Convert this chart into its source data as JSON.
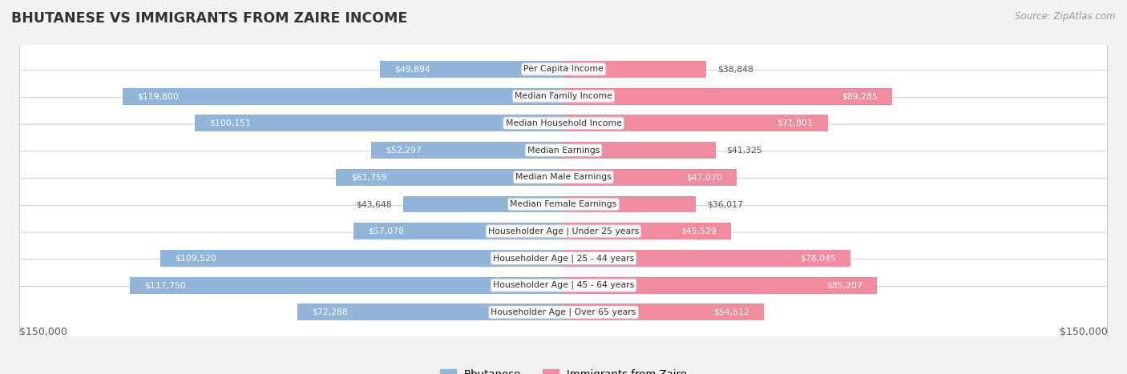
{
  "title": "BHUTANESE VS IMMIGRANTS FROM ZAIRE INCOME",
  "source": "Source: ZipAtlas.com",
  "categories": [
    "Per Capita Income",
    "Median Family Income",
    "Median Household Income",
    "Median Earnings",
    "Median Male Earnings",
    "Median Female Earnings",
    "Householder Age | Under 25 years",
    "Householder Age | 25 - 44 years",
    "Householder Age | 45 - 64 years",
    "Householder Age | Over 65 years"
  ],
  "bhutanese_values": [
    49894,
    119800,
    100151,
    52297,
    61759,
    43648,
    57078,
    109520,
    117750,
    72288
  ],
  "zaire_values": [
    38848,
    89285,
    71801,
    41325,
    47070,
    36017,
    45529,
    78045,
    85207,
    54512
  ],
  "bhutanese_labels": [
    "$49,894",
    "$119,800",
    "$100,151",
    "$52,297",
    "$61,759",
    "$43,648",
    "$57,078",
    "$109,520",
    "$117,750",
    "$72,288"
  ],
  "zaire_labels": [
    "$38,848",
    "$89,285",
    "$71,801",
    "$41,325",
    "$47,070",
    "$36,017",
    "$45,529",
    "$78,045",
    "$85,207",
    "$54,512"
  ],
  "max_value": 150000,
  "bhutanese_color": "#92b4d8",
  "zaire_color": "#f08ba0",
  "bg_color": "#f2f2f2",
  "title_color": "#333333",
  "legend_bhutanese": "Bhutanese",
  "legend_zaire": "Immigrants from Zaire",
  "axis_label_left": "$150,000",
  "axis_label_right": "$150,000"
}
